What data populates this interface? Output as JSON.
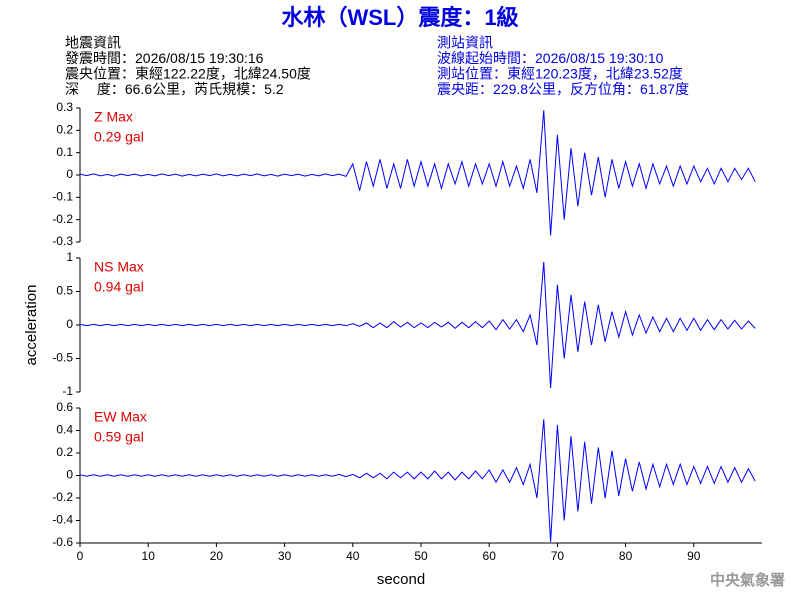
{
  "header": {
    "title": "水林（WSL）震度：1級",
    "left": [
      "地震資訊",
      "發震時間：2026/08/15 19:30:16",
      "震央位置：東經122.22度，北緯24.50度",
      "深　 度：66.6公里，芮氏規模：5.2"
    ],
    "right": [
      "測站資訊",
      "波線起始時間：2026/08/15 19:30:10",
      "測站位置：東經120.23度，北緯23.52度",
      "震央距：229.8公里，反方位角：61.87度"
    ]
  },
  "footer": "中央氣象署",
  "chart_data": [
    {
      "type": "line",
      "annotations": [
        "Z Max",
        "0.29 gal"
      ],
      "annotation_color": "#e00000",
      "xlim": [
        0,
        100
      ],
      "ylim": [
        -0.3,
        0.3
      ],
      "yticks": [
        0.3,
        0.2,
        0.1,
        0,
        -0.1,
        -0.2,
        -0.3
      ],
      "x": [
        0,
        1,
        2,
        3,
        4,
        5,
        6,
        7,
        8,
        9,
        10,
        11,
        12,
        13,
        14,
        15,
        16,
        17,
        18,
        19,
        20,
        21,
        22,
        23,
        24,
        25,
        26,
        27,
        28,
        29,
        30,
        31,
        32,
        33,
        34,
        35,
        36,
        37,
        38,
        39,
        40,
        41,
        42,
        43,
        44,
        45,
        46,
        47,
        48,
        49,
        50,
        51,
        52,
        53,
        54,
        55,
        56,
        57,
        58,
        59,
        60,
        61,
        62,
        63,
        64,
        65,
        66,
        67,
        68,
        69,
        70,
        71,
        72,
        73,
        74,
        75,
        76,
        77,
        78,
        79,
        80,
        81,
        82,
        83,
        84,
        85,
        86,
        87,
        88,
        89,
        90,
        91,
        92,
        93,
        94,
        95,
        96,
        97,
        98,
        99
      ],
      "series": [
        {
          "color": "#0000ff",
          "values": [
            0.004,
            -0.003,
            0.005,
            -0.004,
            0.003,
            -0.005,
            0.004,
            -0.003,
            0.004,
            -0.004,
            0.003,
            -0.004,
            0.005,
            -0.003,
            0.004,
            -0.005,
            0.003,
            -0.004,
            0.004,
            -0.003,
            0.005,
            -0.004,
            0.003,
            -0.004,
            0.004,
            -0.003,
            0.005,
            -0.004,
            0.003,
            -0.005,
            0.004,
            -0.003,
            0.004,
            -0.005,
            0.003,
            -0.004,
            0.005,
            -0.003,
            0.004,
            -0.006,
            0.05,
            -0.07,
            0.06,
            -0.05,
            0.07,
            -0.06,
            0.05,
            -0.06,
            0.07,
            -0.05,
            0.06,
            -0.05,
            0.05,
            -0.06,
            0.05,
            -0.04,
            0.06,
            -0.05,
            0.05,
            -0.04,
            0.05,
            -0.05,
            0.06,
            -0.05,
            0.04,
            -0.06,
            0.07,
            -0.08,
            0.29,
            -0.27,
            0.18,
            -0.2,
            0.12,
            -0.14,
            0.1,
            -0.09,
            0.08,
            -0.1,
            0.07,
            -0.06,
            0.06,
            -0.05,
            0.05,
            -0.06,
            0.05,
            -0.04,
            0.04,
            -0.05,
            0.04,
            -0.04,
            0.04,
            -0.03,
            0.03,
            -0.04,
            0.03,
            -0.03,
            0.03,
            -0.02,
            0.03,
            -0.03
          ]
        }
      ]
    },
    {
      "type": "line",
      "annotations": [
        "NS Max",
        "0.94 gal"
      ],
      "annotation_color": "#e00000",
      "ylabel": "acceleration",
      "xlim": [
        0,
        100
      ],
      "ylim": [
        -1,
        1
      ],
      "yticks": [
        1,
        0.5,
        0,
        -0.5,
        -1
      ],
      "x": [
        0,
        1,
        2,
        3,
        4,
        5,
        6,
        7,
        8,
        9,
        10,
        11,
        12,
        13,
        14,
        15,
        16,
        17,
        18,
        19,
        20,
        21,
        22,
        23,
        24,
        25,
        26,
        27,
        28,
        29,
        30,
        31,
        32,
        33,
        34,
        35,
        36,
        37,
        38,
        39,
        40,
        41,
        42,
        43,
        44,
        45,
        46,
        47,
        48,
        49,
        50,
        51,
        52,
        53,
        54,
        55,
        56,
        57,
        58,
        59,
        60,
        61,
        62,
        63,
        64,
        65,
        66,
        67,
        68,
        69,
        70,
        71,
        72,
        73,
        74,
        75,
        76,
        77,
        78,
        79,
        80,
        81,
        82,
        83,
        84,
        85,
        86,
        87,
        88,
        89,
        90,
        91,
        92,
        93,
        94,
        95,
        96,
        97,
        98,
        99
      ],
      "series": [
        {
          "color": "#0000ff",
          "values": [
            0.01,
            -0.01,
            0.01,
            -0.01,
            0.01,
            -0.01,
            0.01,
            -0.01,
            0.01,
            -0.01,
            0.01,
            -0.01,
            0.01,
            -0.01,
            0.01,
            -0.01,
            0.01,
            -0.01,
            0.01,
            -0.01,
            0.01,
            -0.01,
            0.01,
            -0.01,
            0.01,
            -0.01,
            0.01,
            -0.01,
            0.01,
            -0.01,
            0.01,
            -0.01,
            0.01,
            -0.01,
            0.01,
            -0.01,
            0.01,
            -0.01,
            0.01,
            -0.01,
            0.02,
            -0.02,
            0.03,
            -0.04,
            0.03,
            -0.04,
            0.05,
            -0.03,
            0.04,
            -0.04,
            0.03,
            -0.04,
            0.04,
            -0.03,
            0.04,
            -0.05,
            0.04,
            -0.04,
            0.05,
            -0.04,
            0.06,
            -0.07,
            0.08,
            -0.06,
            0.08,
            -0.1,
            0.15,
            -0.3,
            0.94,
            -0.94,
            0.6,
            -0.5,
            0.45,
            -0.4,
            0.35,
            -0.3,
            0.3,
            -0.25,
            0.2,
            -0.18,
            0.2,
            -0.15,
            0.15,
            -0.12,
            0.12,
            -0.1,
            0.1,
            -0.1,
            0.1,
            -0.08,
            0.1,
            -0.08,
            0.08,
            -0.07,
            0.08,
            -0.06,
            0.07,
            -0.06,
            0.06,
            -0.05
          ]
        }
      ]
    },
    {
      "type": "line",
      "annotations": [
        "EW Max",
        "0.59 gal"
      ],
      "annotation_color": "#e00000",
      "xlabel": "second",
      "xlim": [
        0,
        100
      ],
      "ylim": [
        -0.6,
        0.6
      ],
      "yticks": [
        0.6,
        0.4,
        0.2,
        0,
        -0.2,
        -0.4,
        -0.6
      ],
      "xticks": [
        0,
        10,
        20,
        30,
        40,
        50,
        60,
        70,
        80,
        90
      ],
      "x": [
        0,
        1,
        2,
        3,
        4,
        5,
        6,
        7,
        8,
        9,
        10,
        11,
        12,
        13,
        14,
        15,
        16,
        17,
        18,
        19,
        20,
        21,
        22,
        23,
        24,
        25,
        26,
        27,
        28,
        29,
        30,
        31,
        32,
        33,
        34,
        35,
        36,
        37,
        38,
        39,
        40,
        41,
        42,
        43,
        44,
        45,
        46,
        47,
        48,
        49,
        50,
        51,
        52,
        53,
        54,
        55,
        56,
        57,
        58,
        59,
        60,
        61,
        62,
        63,
        64,
        65,
        66,
        67,
        68,
        69,
        70,
        71,
        72,
        73,
        74,
        75,
        76,
        77,
        78,
        79,
        80,
        81,
        82,
        83,
        84,
        85,
        86,
        87,
        88,
        89,
        90,
        91,
        92,
        93,
        94,
        95,
        96,
        97,
        98,
        99
      ],
      "series": [
        {
          "color": "#0000ff",
          "values": [
            0.006,
            -0.006,
            0.006,
            -0.006,
            0.006,
            -0.006,
            0.006,
            -0.006,
            0.006,
            -0.006,
            0.006,
            -0.006,
            0.006,
            -0.006,
            0.006,
            -0.006,
            0.006,
            -0.006,
            0.006,
            -0.006,
            0.006,
            -0.006,
            0.006,
            -0.006,
            0.006,
            -0.006,
            0.006,
            -0.006,
            0.006,
            -0.006,
            0.006,
            -0.006,
            0.006,
            -0.006,
            0.006,
            -0.006,
            0.006,
            -0.006,
            0.01,
            -0.01,
            0.01,
            -0.02,
            0.02,
            -0.02,
            0.02,
            -0.03,
            0.03,
            -0.02,
            0.03,
            -0.03,
            0.03,
            -0.03,
            0.04,
            -0.03,
            0.03,
            -0.04,
            0.03,
            -0.03,
            0.04,
            -0.03,
            0.05,
            -0.06,
            0.05,
            -0.06,
            0.07,
            -0.08,
            0.1,
            -0.2,
            0.5,
            -0.59,
            0.45,
            -0.4,
            0.35,
            -0.32,
            0.3,
            -0.25,
            0.25,
            -0.2,
            0.22,
            -0.18,
            0.15,
            -0.14,
            0.12,
            -0.12,
            0.1,
            -0.1,
            0.1,
            -0.08,
            0.1,
            -0.08,
            0.08,
            -0.07,
            0.08,
            -0.07,
            0.08,
            -0.06,
            0.07,
            -0.06,
            0.06,
            -0.05
          ]
        }
      ]
    }
  ]
}
